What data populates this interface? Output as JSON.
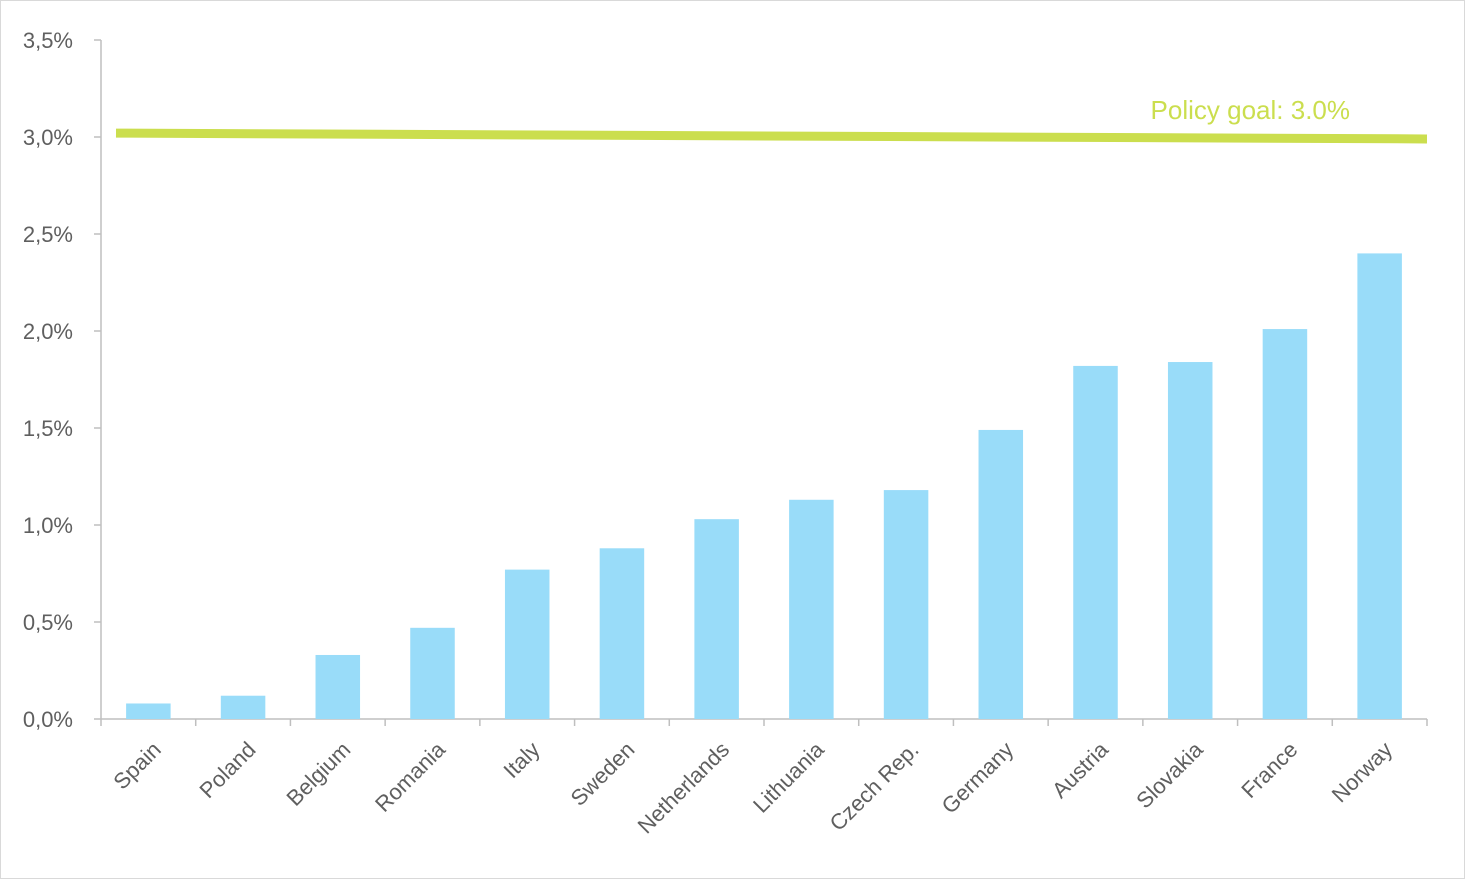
{
  "chart_data": {
    "type": "bar",
    "title": "",
    "xlabel": "",
    "ylabel": "",
    "categories": [
      "Spain",
      "Poland",
      "Belgium",
      "Romania",
      "Italy",
      "Sweden",
      "Netherlands",
      "Lithuania",
      "Czech Rep.",
      "Germany",
      "Austria",
      "Slovakia",
      "France",
      "Norway"
    ],
    "values": [
      0.08,
      0.12,
      0.33,
      0.47,
      0.77,
      0.88,
      1.03,
      1.13,
      1.18,
      1.49,
      1.82,
      1.84,
      2.01,
      2.4
    ],
    "ylim": [
      0,
      3.5
    ],
    "yticks": [
      0,
      0.5,
      1.0,
      1.5,
      2.0,
      2.5,
      3.0,
      3.5
    ],
    "ytick_labels": [
      "0,0%",
      "0,5%",
      "1,0%",
      "1,5%",
      "2,0%",
      "2,5%",
      "3,0%",
      "3,5%"
    ],
    "grid": false,
    "legend": "none",
    "bar_color": "#99dcf9",
    "axis_color": "#bfbfbf",
    "reference_line": {
      "label": "Policy goal: 3.0%",
      "value_start": 3.02,
      "value_end": 2.99,
      "color": "#cbde4e"
    }
  }
}
